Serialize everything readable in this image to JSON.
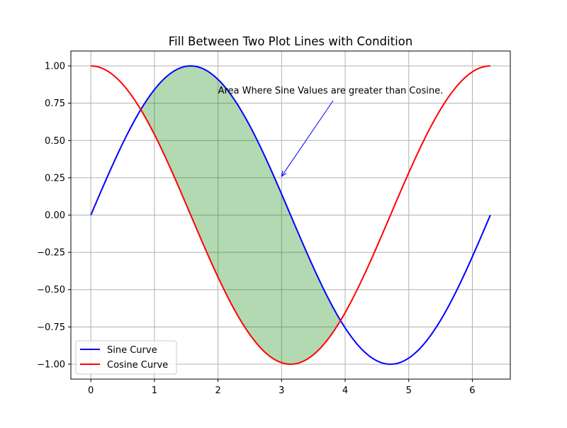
{
  "chart_data": {
    "type": "line",
    "title": "Fill Between Two Plot Lines with Condition",
    "xlabel": "",
    "ylabel": "",
    "xlim": [
      -0.314,
      6.597
    ],
    "ylim": [
      -1.1,
      1.1
    ],
    "xticks": [
      {
        "value": 0,
        "label": "0"
      },
      {
        "value": 1,
        "label": "1"
      },
      {
        "value": 2,
        "label": "2"
      },
      {
        "value": 3,
        "label": "3"
      },
      {
        "value": 4,
        "label": "4"
      },
      {
        "value": 5,
        "label": "5"
      },
      {
        "value": 6,
        "label": "6"
      }
    ],
    "yticks": [
      {
        "value": 1.0,
        "label": "1.00"
      },
      {
        "value": 0.75,
        "label": "0.75"
      },
      {
        "value": 0.5,
        "label": "0.50"
      },
      {
        "value": 0.25,
        "label": "0.25"
      },
      {
        "value": 0.0,
        "label": "0.00"
      },
      {
        "value": -0.25,
        "label": "−0.25"
      },
      {
        "value": -0.5,
        "label": "−0.50"
      },
      {
        "value": -0.75,
        "label": "−0.75"
      },
      {
        "value": -1.0,
        "label": "−1.00"
      }
    ],
    "grid": true,
    "x": [
      0.0,
      0.1571,
      0.3142,
      0.4712,
      0.6283,
      0.7854,
      0.9425,
      1.0996,
      1.2566,
      1.4137,
      1.5708,
      1.7279,
      1.885,
      2.042,
      2.1991,
      2.3562,
      2.5133,
      2.6704,
      2.8274,
      2.9845,
      3.1416,
      3.2987,
      3.4558,
      3.6128,
      3.7699,
      3.927,
      4.0841,
      4.2412,
      4.3982,
      4.5553,
      4.7124,
      4.8695,
      5.0265,
      5.1836,
      5.3407,
      5.4978,
      5.6549,
      5.8119,
      5.969,
      6.1261,
      6.2832
    ],
    "series": [
      {
        "name": "Sine Curve",
        "color": "#0000ff",
        "values": [
          0.0,
          0.1564,
          0.309,
          0.454,
          0.5878,
          0.7071,
          0.809,
          0.891,
          0.9511,
          0.9877,
          1.0,
          0.9877,
          0.9511,
          0.891,
          0.809,
          0.7071,
          0.5878,
          0.454,
          0.309,
          0.1564,
          0.0,
          -0.1564,
          -0.309,
          -0.454,
          -0.5878,
          -0.7071,
          -0.809,
          -0.891,
          -0.9511,
          -0.9877,
          -1.0,
          -0.9877,
          -0.9511,
          -0.891,
          -0.809,
          -0.7071,
          -0.5878,
          -0.454,
          -0.309,
          -0.1564,
          0.0
        ]
      },
      {
        "name": "Cosine Curve",
        "color": "#ff0000",
        "values": [
          1.0,
          0.9877,
          0.9511,
          0.891,
          0.809,
          0.7071,
          0.5878,
          0.454,
          0.309,
          0.1564,
          0.0,
          -0.1564,
          -0.309,
          -0.454,
          -0.5878,
          -0.7071,
          -0.809,
          -0.891,
          -0.9511,
          -0.9877,
          -1.0,
          -0.9877,
          -0.9511,
          -0.891,
          -0.809,
          -0.7071,
          -0.5878,
          -0.454,
          -0.309,
          -0.1564,
          0.0,
          0.1564,
          0.309,
          0.454,
          0.5878,
          0.7071,
          0.809,
          0.891,
          0.9511,
          0.9877,
          1.0
        ]
      }
    ],
    "fill_between": {
      "between": [
        "Sine Curve",
        "Cosine Curve"
      ],
      "where": "sine > cosine",
      "x_range": [
        0.7854,
        3.927
      ],
      "color": "#008000",
      "opacity": 0.3
    },
    "annotation": {
      "text": "Area Where Sine Values are greater than Cosine.",
      "point": [
        3.0,
        0.26
      ],
      "text_at": [
        2.0,
        0.8
      ]
    },
    "legend": {
      "placement": "lower-left",
      "entries": [
        {
          "label": "Sine Curve",
          "color": "#0000ff"
        },
        {
          "label": "Cosine Curve",
          "color": "#ff0000"
        }
      ]
    },
    "colors": {
      "grid": "#b0b0b0",
      "axes": "#000000",
      "background": "#ffffff"
    }
  }
}
